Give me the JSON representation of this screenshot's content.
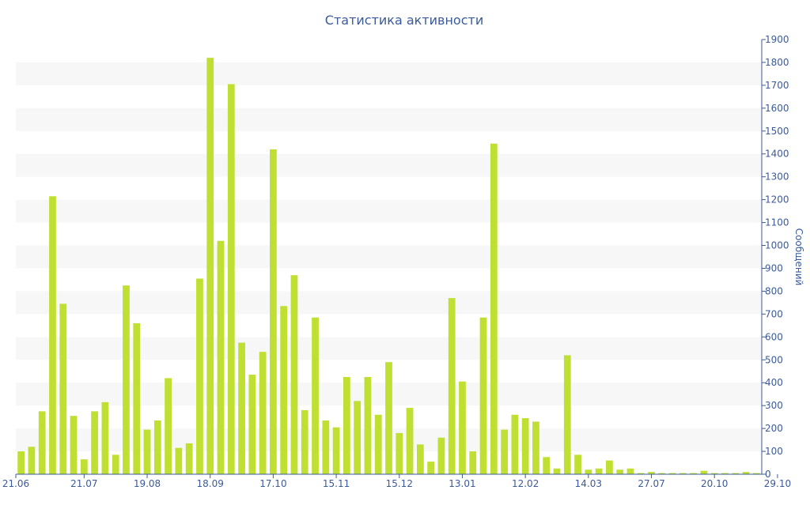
{
  "chart_data": {
    "type": "bar",
    "title": "Статистика активности",
    "ylabel": "Сообщений",
    "xlabel": "",
    "ylim": [
      0,
      1900
    ],
    "y_ticks": [
      0,
      100,
      200,
      300,
      400,
      500,
      600,
      700,
      800,
      900,
      1000,
      1100,
      1200,
      1300,
      1400,
      1500,
      1600,
      1700,
      1800,
      1900
    ],
    "x_tick_labels": [
      {
        "label": "21.06",
        "index": 0
      },
      {
        "label": "21.07",
        "index": 6
      },
      {
        "label": "19.08",
        "index": 12
      },
      {
        "label": "18.09",
        "index": 18
      },
      {
        "label": "17.10",
        "index": 24
      },
      {
        "label": "15.11",
        "index": 30
      },
      {
        "label": "15.12",
        "index": 36
      },
      {
        "label": "13.01",
        "index": 42
      },
      {
        "label": "12.02",
        "index": 48
      },
      {
        "label": "14.03",
        "index": 54
      },
      {
        "label": "27.07",
        "index": 60
      },
      {
        "label": "20.10",
        "index": 66
      },
      {
        "label": "29.10",
        "index": 72
      }
    ],
    "values": [
      100,
      120,
      275,
      1215,
      745,
      255,
      65,
      275,
      315,
      85,
      825,
      660,
      195,
      235,
      420,
      115,
      135,
      855,
      1820,
      1020,
      1705,
      575,
      435,
      535,
      1420,
      735,
      870,
      280,
      685,
      235,
      205,
      425,
      320,
      425,
      260,
      490,
      180,
      290,
      130,
      55,
      160,
      770,
      405,
      100,
      685,
      1445,
      195,
      260,
      245,
      230,
      75,
      25,
      520,
      85,
      20,
      25,
      60,
      20,
      25,
      5,
      10,
      5,
      5,
      5,
      5,
      15,
      5,
      5,
      5,
      10,
      5
    ],
    "bar_color": "#bfe032",
    "band_color": "#f7f7f7",
    "axis_color": "#3b5a9a",
    "grid": "alternating-bands",
    "legend": "none"
  }
}
